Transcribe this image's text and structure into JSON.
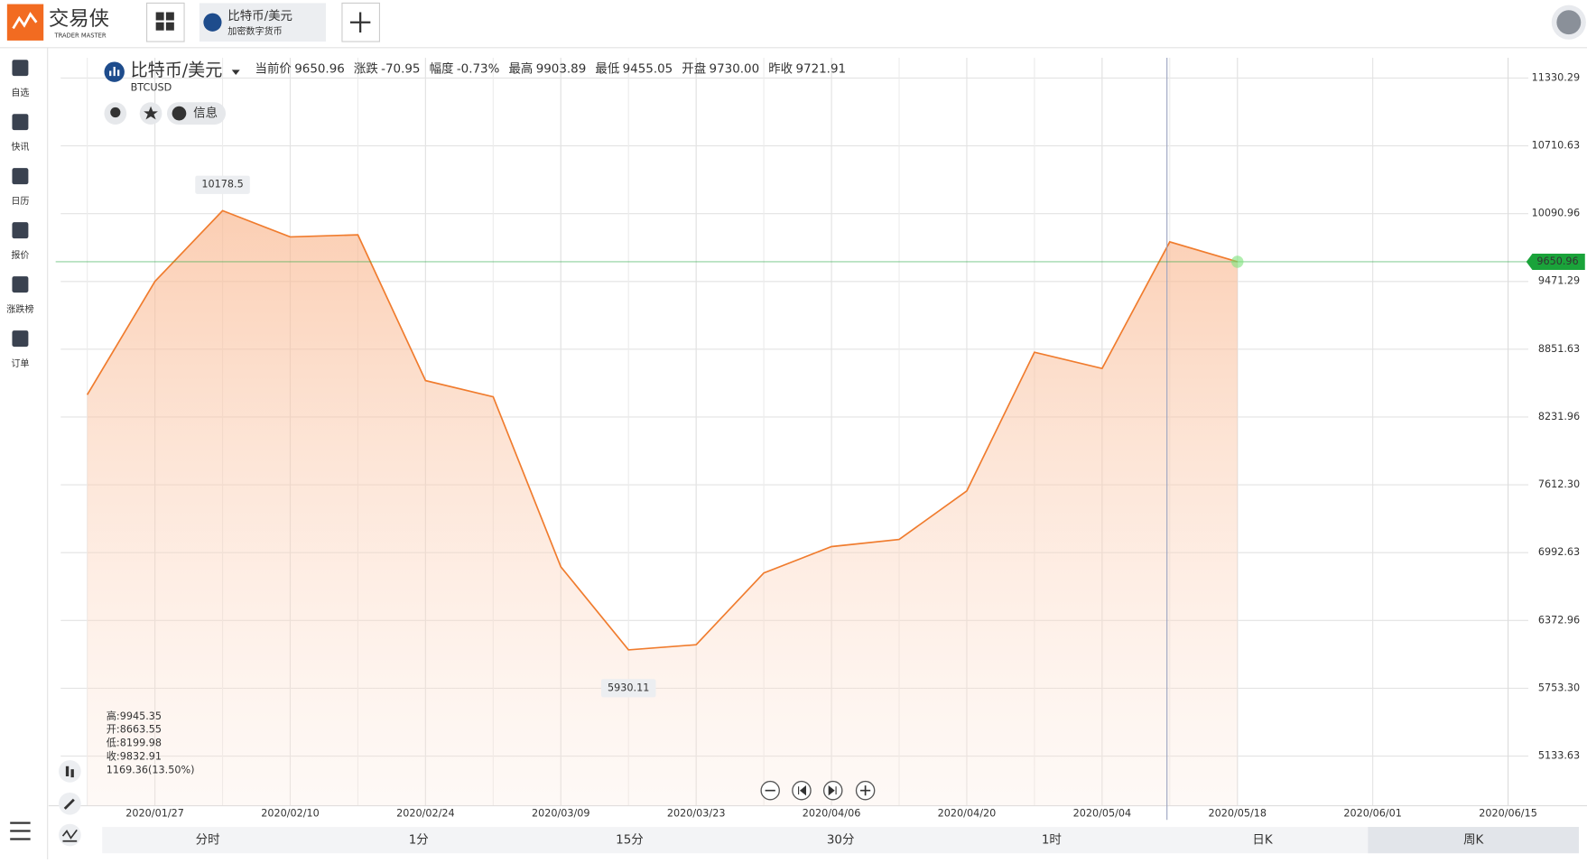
{
  "header": {
    "logo_text": "交易侠",
    "logo_sub": "TRADER MASTER",
    "tab_title": "比特币/美元",
    "tab_sub": "加密数字货币"
  },
  "sidebar": [
    "自选",
    "快讯",
    "日历",
    "报价",
    "涨跌榜",
    "订单"
  ],
  "symbol": {
    "name": "比特币/美元",
    "code": "BTCUSD",
    "info": "信息",
    "stats": [
      {
        "label": "当前价",
        "value": "9650.96",
        "color": "#1aa33a"
      },
      {
        "label": "涨跌",
        "value": "-70.95",
        "color": "#1aa33a"
      },
      {
        "label": "幅度",
        "value": "-0.73%",
        "color": "#1aa33a"
      },
      {
        "label": "最高",
        "value": "9903.89",
        "color": "#222222"
      },
      {
        "label": "最低",
        "value": "9455.05",
        "color": "#222222"
      },
      {
        "label": "开盘",
        "value": "9730.00",
        "color": "#222222"
      },
      {
        "label": "昨收",
        "value": "9721.91",
        "color": "#222222"
      }
    ]
  },
  "ohlc": [
    "高:9945.35",
    "开:8663.55",
    "低:8199.98",
    "收:9832.91",
    "1169.36(13.50%)"
  ],
  "periods": [
    "分时",
    "1分",
    "15分",
    "30分",
    "1时",
    "日K",
    "周K"
  ],
  "chart_data": {
    "type": "area",
    "color": "#f07c2e",
    "x": [
      "2020/01/20",
      "2020/01/27",
      "2020/02/03",
      "2020/02/10",
      "2020/02/17",
      "2020/02/24",
      "2020/03/02",
      "2020/03/09",
      "2020/03/16",
      "2020/03/23",
      "2020/03/30",
      "2020/04/06",
      "2020/04/13",
      "2020/04/20",
      "2020/04/27",
      "2020/05/04",
      "2020/05/11",
      "2020/05/18"
    ],
    "values": [
      8435,
      9471,
      10118,
      9878,
      9897,
      8565,
      8417,
      6863,
      6104,
      6151,
      6807,
      7048,
      7113,
      7557,
      8824,
      8676,
      9832.91,
      9650.96
    ],
    "xlim": [
      "2020/01/16",
      "2020/06/15"
    ],
    "xticks": [
      "2020/01/27",
      "2020/02/10",
      "2020/02/24",
      "2020/03/09",
      "2020/03/23",
      "2020/04/06",
      "2020/04/20",
      "2020/05/04",
      "2020/05/18",
      "2020/06/01",
      "2020/06/15"
    ],
    "ylim": [
      4680,
      11608
    ],
    "yticks": [
      11330.29,
      10710.63,
      10090.96,
      9471.29,
      8851.63,
      8231.96,
      {
        "value": 7612.3,
        "label": "7612.30"
      },
      6992.63,
      6372.96,
      {
        "value": 5753.3,
        "label": "5753.30"
      },
      5133.63
    ],
    "annotations": [
      {
        "x": "2020/02/03",
        "value": 10178.5,
        "label": "10178.5",
        "position": "above"
      },
      {
        "x": "2020/03/16",
        "value": 5930.11,
        "label": "5930.11",
        "position": "below"
      }
    ],
    "current_price": 9650.96,
    "current_color": "#1aa33a",
    "grid": true
  }
}
